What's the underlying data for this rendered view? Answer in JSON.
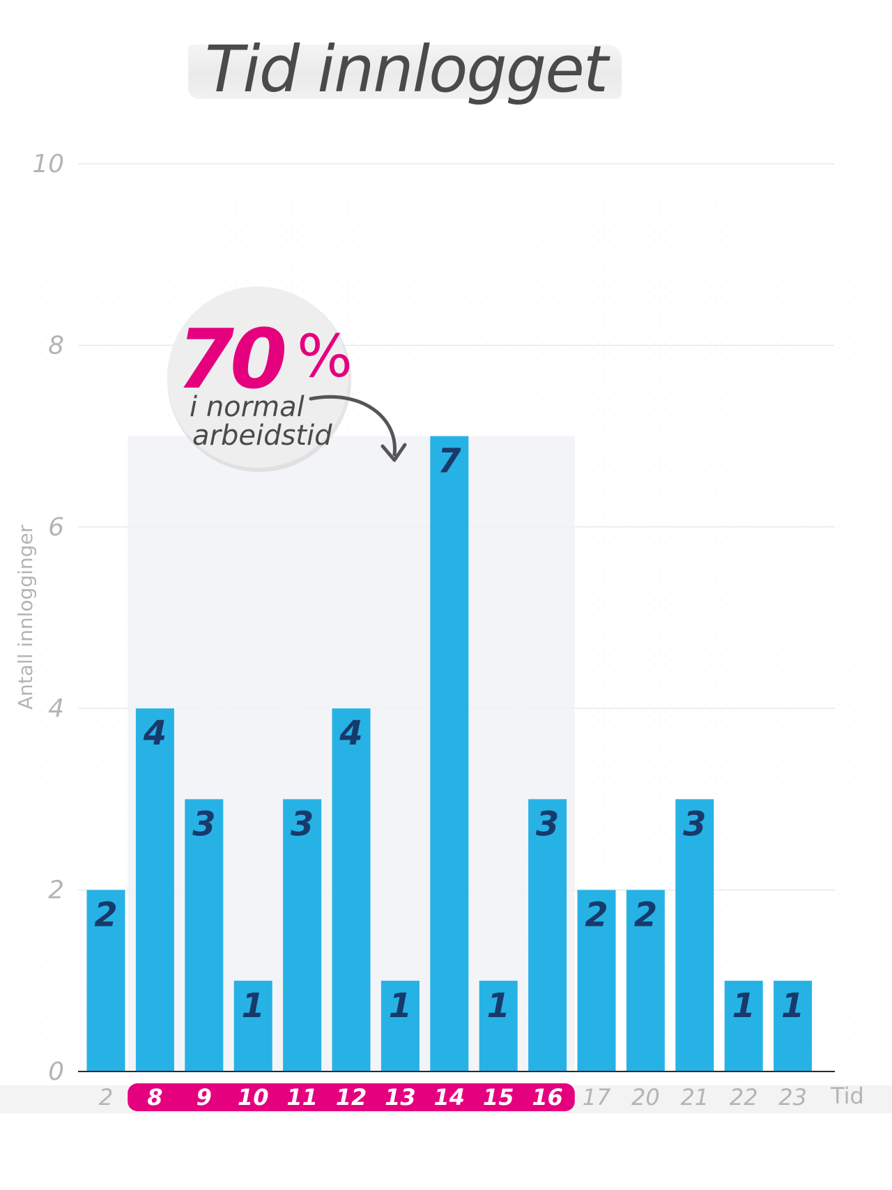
{
  "title": "Tid innlogget",
  "annotation": {
    "percent": "70",
    "percent_sign": "%",
    "line1": "i normal",
    "line2": "arbeidstid"
  },
  "colors": {
    "bar": "#27b2e6",
    "bar_label": "#173a6b",
    "highlight": "#e5007e",
    "title": "#4a4a4a",
    "axis_text": "#b4b4b4"
  },
  "chart_data": {
    "type": "bar",
    "title": "Tid innlogget",
    "xlabel": "Tid",
    "ylabel": "Antall innlogginger",
    "categories": [
      "2",
      "8",
      "9",
      "10",
      "11",
      "12",
      "13",
      "14",
      "15",
      "16",
      "17",
      "20",
      "21",
      "22",
      "23"
    ],
    "values": [
      2,
      4,
      3,
      1,
      3,
      4,
      1,
      7,
      1,
      3,
      2,
      2,
      3,
      1,
      1
    ],
    "ylim": [
      0,
      10
    ],
    "yticks": [
      0,
      2,
      4,
      6,
      8,
      10
    ],
    "grid": true,
    "highlighted_categories": [
      "8",
      "9",
      "10",
      "11",
      "12",
      "13",
      "14",
      "15",
      "16"
    ]
  }
}
